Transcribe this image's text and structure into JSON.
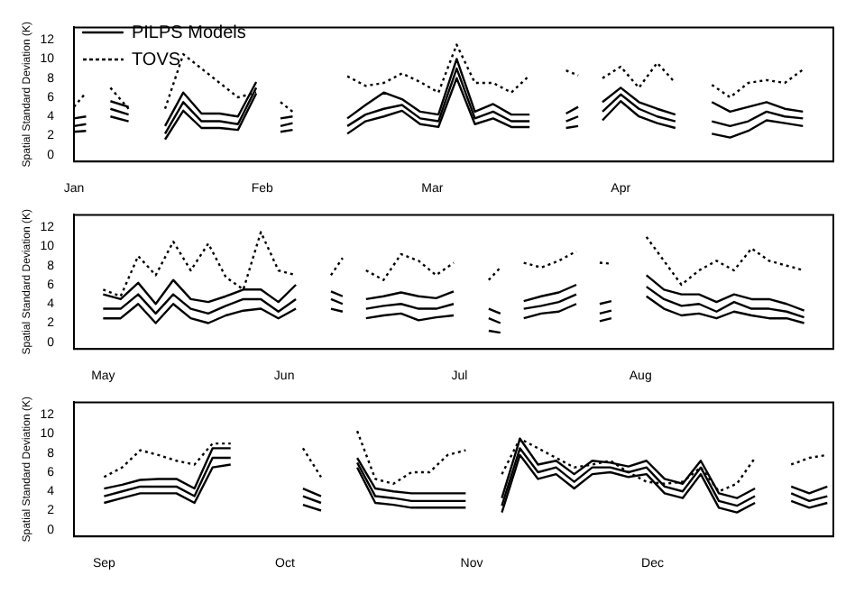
{
  "chart_data": [
    {
      "type": "line",
      "ylabel": "Spatial Standard Deviation (K)",
      "x": [
        "--01-01",
        "--01-03",
        "--01-04",
        "--01-07",
        "--01-10",
        "--01-13",
        "--01-16",
        "--01-19",
        "--01-22",
        "--01-25",
        "--01-28",
        "--01-31",
        "--02-03",
        "--02-04",
        "--02-06",
        "--02-09",
        "--02-12",
        "--02-15",
        "--02-18",
        "--02-21",
        "--02-24",
        "--02-27",
        "--03-02",
        "--03-05",
        "--03-08",
        "--03-11",
        "--03-14",
        "--03-17",
        "--03-20",
        "--03-23",
        "--03-25",
        "--03-26",
        "--03-29",
        "--04-01",
        "--04-04",
        "--04-07",
        "--04-10",
        "--04-13",
        "--04-16",
        "--04-19",
        "--04-22",
        "--04-25",
        "--04-28",
        "--05-01"
      ],
      "xlim": [
        "--01-01",
        "--05-06"
      ],
      "xticks": [
        {
          "value": "--01-01",
          "label": "Jan"
        },
        {
          "value": "--02-01",
          "label": "Feb"
        },
        {
          "value": "--03-01",
          "label": "Mar"
        },
        {
          "value": "--04-01",
          "label": "Apr"
        }
      ],
      "ylim": [
        -0.7,
        13.3
      ],
      "yticks": [
        0,
        2,
        4,
        6,
        8,
        10,
        12
      ],
      "grid": false,
      "legend": "top left",
      "marker": "none",
      "series": [
        {
          "name": "PILPS Models",
          "color": "#000000",
          "line_style": "solid",
          "values": [
            3.0,
            3.2,
            null,
            4.8,
            4.2,
            null,
            2.2,
            5.5,
            3.5,
            3.5,
            3.2,
            7.0,
            null,
            3.0,
            3.3,
            null,
            null,
            3.0,
            4.2,
            4.8,
            5.2,
            3.8,
            3.5,
            9.0,
            3.8,
            4.5,
            3.5,
            3.5,
            null,
            3.5,
            4.0,
            null,
            4.5,
            6.3,
            4.8,
            4.0,
            3.5,
            null,
            3.5,
            3.0,
            3.5,
            4.5,
            4.0,
            3.8
          ]
        },
        {
          "color": "#000000",
          "line_style": "solid",
          "values": [
            3.8,
            4.0,
            null,
            5.6,
            5.0,
            null,
            3.0,
            6.5,
            4.3,
            4.3,
            4.0,
            7.6,
            null,
            3.8,
            4.0,
            null,
            null,
            3.8,
            5.2,
            6.5,
            5.8,
            4.5,
            4.2,
            10.0,
            4.5,
            5.3,
            4.2,
            4.2,
            null,
            4.3,
            5.0,
            null,
            5.5,
            7.0,
            5.5,
            4.8,
            4.2,
            null,
            5.5,
            4.5,
            5.0,
            5.5,
            4.8,
            4.5
          ]
        },
        {
          "color": "#000000",
          "line_style": "solid",
          "values": [
            2.4,
            2.5,
            null,
            4.0,
            3.5,
            null,
            1.6,
            4.6,
            2.8,
            2.8,
            2.6,
            6.4,
            null,
            2.4,
            2.6,
            null,
            null,
            2.2,
            3.5,
            4.0,
            4.6,
            3.2,
            2.9,
            8.0,
            3.2,
            3.8,
            2.9,
            2.9,
            null,
            2.8,
            3.0,
            null,
            3.6,
            5.6,
            4.0,
            3.3,
            2.8,
            null,
            2.2,
            1.8,
            2.5,
            3.6,
            3.3,
            3.0
          ]
        },
        {
          "name": "TOVS",
          "color": "#000000",
          "line_style": "dotted",
          "values": [
            5.0,
            6.5,
            null,
            7.0,
            4.8,
            null,
            4.8,
            10.5,
            9.0,
            7.5,
            6.0,
            6.5,
            null,
            5.5,
            4.5,
            null,
            null,
            8.2,
            7.2,
            7.5,
            8.5,
            7.6,
            6.5,
            11.5,
            7.5,
            7.5,
            6.5,
            8.3,
            null,
            8.8,
            8.3,
            null,
            8.0,
            9.2,
            7.0,
            9.6,
            7.5,
            null,
            7.3,
            6.0,
            7.5,
            7.8,
            7.5,
            8.9
          ]
        }
      ]
    },
    {
      "type": "line",
      "ylabel": "Spatial Standard Deviation (K)",
      "x": [
        "--05-01",
        "--05-04",
        "--05-07",
        "--05-10",
        "--05-13",
        "--05-16",
        "--05-19",
        "--05-22",
        "--05-25",
        "--05-28",
        "--05-31",
        "--06-03",
        "--06-06",
        "--06-09",
        "--06-11",
        "--06-12",
        "--06-15",
        "--06-18",
        "--06-21",
        "--06-24",
        "--06-27",
        "--06-30",
        "--07-03",
        "--07-06",
        "--07-08",
        "--07-09",
        "--07-12",
        "--07-15",
        "--07-18",
        "--07-21",
        "--07-24",
        "--07-25",
        "--07-27",
        "--07-30",
        "--08-02",
        "--08-05",
        "--08-08",
        "--08-11",
        "--08-14",
        "--08-17",
        "--08-20",
        "--08-23",
        "--08-26",
        "--08-29"
      ],
      "xlim": [
        "--04-26",
        "--09-03"
      ],
      "xticks": [
        {
          "value": "--05-01",
          "label": "May"
        },
        {
          "value": "--06-01",
          "label": "Jun"
        },
        {
          "value": "--07-01",
          "label": "Jul"
        },
        {
          "value": "--08-01",
          "label": "Aug"
        }
      ],
      "ylim": [
        -0.7,
        13.3
      ],
      "yticks": [
        0,
        2,
        4,
        6,
        8,
        10,
        12
      ],
      "grid": false,
      "legend": false,
      "marker": "none",
      "series": [
        {
          "color": "#000000",
          "line_style": "solid",
          "values": [
            3.5,
            3.5,
            5.0,
            3.0,
            5.0,
            3.5,
            3.0,
            3.8,
            4.5,
            4.5,
            3.2,
            4.5,
            null,
            4.5,
            4.0,
            null,
            3.5,
            3.8,
            4.0,
            3.5,
            3.5,
            4.0,
            null,
            2.5,
            2.0,
            null,
            3.5,
            3.8,
            4.2,
            5.0,
            null,
            3.0,
            3.3,
            null,
            5.8,
            4.5,
            3.8,
            4.0,
            3.2,
            4.2,
            3.5,
            3.5,
            3.2,
            2.6
          ]
        },
        {
          "color": "#000000",
          "line_style": "solid",
          "values": [
            5.0,
            4.5,
            6.2,
            4.0,
            6.5,
            4.5,
            4.2,
            4.8,
            5.5,
            5.5,
            4.2,
            6.0,
            null,
            5.3,
            4.8,
            null,
            4.5,
            4.8,
            5.2,
            4.8,
            4.6,
            5.3,
            null,
            3.5,
            3.0,
            null,
            4.3,
            4.8,
            5.2,
            6.0,
            null,
            4.0,
            4.3,
            null,
            7.0,
            5.5,
            5.0,
            5.0,
            4.2,
            5.0,
            4.5,
            4.5,
            4.0,
            3.3
          ]
        },
        {
          "color": "#000000",
          "line_style": "solid",
          "values": [
            2.5,
            2.5,
            4.0,
            2.0,
            4.0,
            2.5,
            2.0,
            2.8,
            3.3,
            3.5,
            2.5,
            3.5,
            null,
            3.5,
            3.2,
            null,
            2.5,
            2.8,
            3.0,
            2.3,
            2.6,
            2.8,
            null,
            1.2,
            1.0,
            null,
            2.5,
            3.0,
            3.2,
            4.0,
            null,
            2.2,
            2.5,
            null,
            4.8,
            3.5,
            2.8,
            3.0,
            2.5,
            3.2,
            2.8,
            2.5,
            2.5,
            2.0
          ]
        },
        {
          "color": "#000000",
          "line_style": "dotted",
          "values": [
            5.5,
            4.8,
            9.0,
            7.0,
            10.5,
            7.5,
            10.3,
            6.8,
            5.5,
            11.5,
            7.5,
            7.0,
            null,
            7.0,
            8.8,
            null,
            7.5,
            6.5,
            9.2,
            8.5,
            7.0,
            8.3,
            null,
            6.5,
            7.8,
            null,
            8.3,
            7.8,
            8.5,
            9.5,
            null,
            8.3,
            8.2,
            null,
            11.0,
            8.5,
            6.0,
            7.5,
            8.5,
            7.5,
            9.8,
            8.5,
            8.0,
            7.5
          ]
        }
      ]
    },
    {
      "type": "line",
      "ylabel": "Spatial Standard Deviation (K)",
      "x": [
        "--09-01",
        "--09-04",
        "--09-07",
        "--09-10",
        "--09-13",
        "--09-16",
        "--09-19",
        "--09-22",
        "--09-25",
        "--09-28",
        "--10-01",
        "--10-04",
        "--10-07",
        "--10-10",
        "--10-13",
        "--10-16",
        "--10-19",
        "--10-22",
        "--10-25",
        "--10-28",
        "--10-31",
        "--11-03",
        "--11-06",
        "--11-09",
        "--11-12",
        "--11-15",
        "--11-18",
        "--11-21",
        "--11-24",
        "--11-27",
        "--11-30",
        "--12-03",
        "--12-06",
        "--12-09",
        "--12-12",
        "--12-15",
        "--12-18",
        "--12-21",
        "--12-24",
        "--12-27",
        "--12-30"
      ],
      "xlim": [
        "--08-27",
        "--12-31"
      ],
      "xticks": [
        {
          "value": "--09-01",
          "label": "Sep"
        },
        {
          "value": "--10-01",
          "label": "Oct"
        },
        {
          "value": "--11-01",
          "label": "Nov"
        },
        {
          "value": "--12-01",
          "label": "Dec"
        }
      ],
      "ylim": [
        -0.7,
        13.3
      ],
      "yticks": [
        0,
        2,
        4,
        6,
        8,
        10,
        12
      ],
      "grid": false,
      "legend": false,
      "marker": "none",
      "series": [
        {
          "color": "#000000",
          "line_style": "solid",
          "values": [
            3.5,
            4.0,
            4.5,
            4.5,
            4.5,
            3.5,
            7.5,
            7.5,
            null,
            null,
            null,
            3.5,
            2.8,
            null,
            7.0,
            3.5,
            3.3,
            3.0,
            3.0,
            3.0,
            3.0,
            null,
            2.5,
            8.5,
            6.0,
            6.5,
            5.0,
            6.5,
            6.5,
            6.0,
            6.5,
            4.5,
            4.0,
            6.5,
            3.0,
            2.5,
            3.5,
            null,
            3.8,
            3.0,
            3.5
          ]
        },
        {
          "color": "#000000",
          "line_style": "solid",
          "values": [
            4.3,
            4.7,
            5.2,
            5.3,
            5.3,
            4.3,
            8.5,
            8.5,
            null,
            null,
            null,
            4.3,
            3.5,
            null,
            7.5,
            4.3,
            4.0,
            3.8,
            3.8,
            3.8,
            3.8,
            null,
            3.3,
            9.5,
            6.8,
            7.2,
            5.8,
            7.2,
            7.0,
            6.6,
            7.2,
            5.3,
            4.8,
            7.2,
            3.8,
            3.3,
            4.3,
            null,
            4.5,
            3.8,
            4.5
          ]
        },
        {
          "color": "#000000",
          "line_style": "solid",
          "values": [
            2.8,
            3.3,
            3.8,
            3.8,
            3.8,
            2.8,
            6.5,
            6.8,
            null,
            null,
            null,
            2.6,
            2.0,
            null,
            6.5,
            2.8,
            2.6,
            2.3,
            2.3,
            2.3,
            2.3,
            null,
            1.8,
            7.8,
            5.3,
            5.8,
            4.3,
            5.8,
            6.0,
            5.5,
            5.8,
            3.8,
            3.3,
            5.8,
            2.3,
            1.8,
            2.8,
            null,
            3.0,
            2.3,
            2.8
          ]
        },
        {
          "color": "#000000",
          "line_style": "dotted",
          "values": [
            5.5,
            6.5,
            8.3,
            7.8,
            7.2,
            6.8,
            9.0,
            9.0,
            null,
            null,
            null,
            8.5,
            5.5,
            null,
            10.3,
            5.3,
            4.8,
            6.0,
            6.0,
            7.8,
            8.3,
            null,
            5.8,
            9.5,
            8.5,
            7.5,
            6.5,
            6.8,
            7.2,
            6.0,
            5.0,
            4.8,
            5.0,
            6.5,
            4.0,
            4.8,
            7.5,
            null,
            6.8,
            7.5,
            7.8
          ]
        }
      ]
    }
  ]
}
